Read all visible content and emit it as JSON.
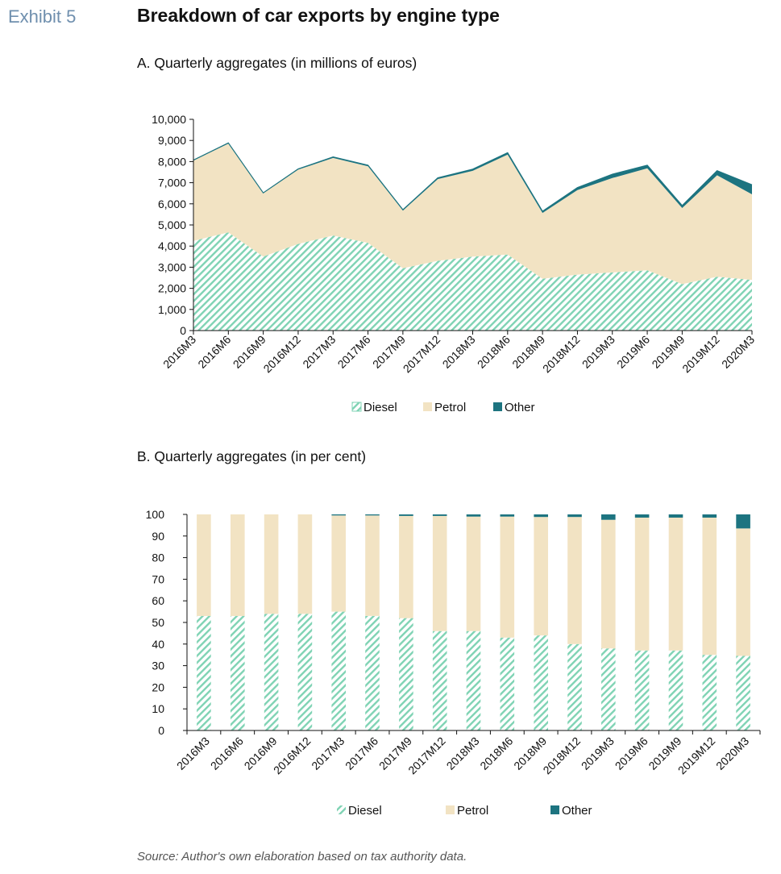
{
  "exhibit": {
    "label": "Exhibit 5",
    "title": "Breakdown of car exports by engine type"
  },
  "colors": {
    "diesel_stripe": "#7fd3b4",
    "petrol": "#f2e3c3",
    "other": "#1d7480",
    "axis": "#111111"
  },
  "source": "Source: Author's own elaboration based on tax authority data.",
  "chart_data": [
    {
      "type": "area",
      "stacked": true,
      "title": "A. Quarterly aggregates (in millions of euros)",
      "xlabel": "",
      "ylabel": "",
      "categories": [
        "2016M3",
        "2016M6",
        "2016M9",
        "2016M12",
        "2017M3",
        "2017M6",
        "2017M9",
        "2017M12",
        "2018M3",
        "2018M6",
        "2018M9",
        "2018M12",
        "2019M3",
        "2019M6",
        "2019M9",
        "2019M12",
        "2020M3"
      ],
      "ylim": [
        0,
        10000
      ],
      "yticks": [
        "0",
        "1,000",
        "2,000",
        "3,000",
        "4,000",
        "5,000",
        "6,000",
        "7,000",
        "8,000",
        "9,000",
        "10,000"
      ],
      "legend_position": "bottom",
      "series": [
        {
          "name": "Diesel",
          "values": [
            4250,
            4650,
            3500,
            4100,
            4500,
            4150,
            2950,
            3300,
            3500,
            3600,
            2450,
            2650,
            2750,
            2850,
            2200,
            2550,
            2400
          ]
        },
        {
          "name": "Petrol",
          "values": [
            3800,
            4200,
            3000,
            3520,
            3670,
            3630,
            2730,
            3870,
            4060,
            4730,
            3120,
            4000,
            4470,
            4830,
            3600,
            4800,
            4050
          ]
        },
        {
          "name": "Other",
          "values": [
            20,
            30,
            20,
            30,
            50,
            50,
            40,
            60,
            80,
            90,
            80,
            120,
            180,
            150,
            120,
            220,
            450
          ]
        }
      ]
    },
    {
      "type": "bar",
      "stacked": true,
      "title": "B. Quarterly aggregates (in per cent)",
      "xlabel": "",
      "ylabel": "",
      "categories": [
        "2016M3",
        "2016M6",
        "2016M9",
        "2016M12",
        "2017M3",
        "2017M6",
        "2017M9",
        "2017M12",
        "2018M3",
        "2018M6",
        "2018M9",
        "2018M12",
        "2019M3",
        "2019M6",
        "2019M9",
        "2019M12",
        "2020M3"
      ],
      "ylim": [
        0,
        100
      ],
      "yticks": [
        "0",
        "10",
        "20",
        "30",
        "40",
        "50",
        "60",
        "70",
        "80",
        "90",
        "100"
      ],
      "legend_position": "bottom",
      "series": [
        {
          "name": "Diesel",
          "values": [
            53,
            53,
            54,
            54,
            55,
            53,
            52,
            46,
            46,
            43,
            44,
            40,
            38,
            37,
            37,
            35,
            34.5
          ]
        },
        {
          "name": "Petrol",
          "values": [
            47,
            47,
            46,
            46,
            44.5,
            46.5,
            47.3,
            53.3,
            53,
            56,
            54.8,
            58.8,
            59.5,
            61.5,
            61.5,
            63.5,
            59
          ]
        },
        {
          "name": "Other",
          "values": [
            0,
            0,
            0,
            0,
            0.5,
            0.5,
            0.7,
            0.7,
            1,
            1,
            1.2,
            1.2,
            2.5,
            1.5,
            1.5,
            1.5,
            6.5
          ]
        }
      ]
    }
  ]
}
